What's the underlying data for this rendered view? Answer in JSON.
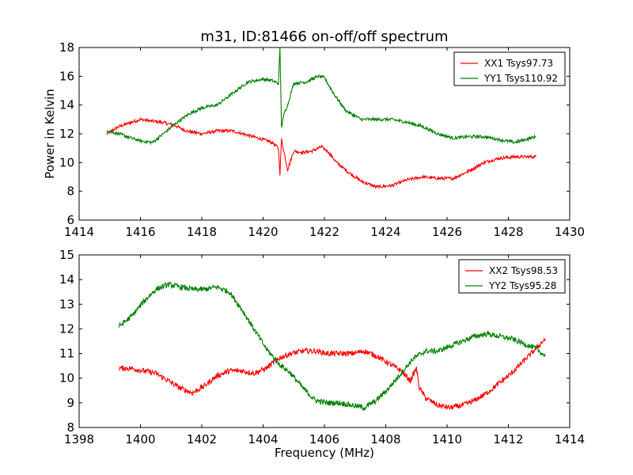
{
  "chart_data": [
    {
      "type": "line",
      "title": "m31, ID:81466 on-off/off spectrum",
      "xlabel": "",
      "ylabel": "Power in Kelvin",
      "xlim": [
        1414,
        1430
      ],
      "ylim": [
        6,
        18
      ],
      "xticks": [
        1414,
        1416,
        1418,
        1420,
        1422,
        1424,
        1426,
        1428,
        1430
      ],
      "yticks": [
        6,
        8,
        10,
        12,
        14,
        16,
        18
      ],
      "legend_position": "top-right",
      "series": [
        {
          "name": "XX1 Tsys97.73",
          "color": "#ff0000",
          "x": [
            1414.9,
            1415.3,
            1415.7,
            1416.0,
            1416.3,
            1416.7,
            1417.1,
            1417.5,
            1418.0,
            1418.5,
            1419.0,
            1419.5,
            1420.0,
            1420.3,
            1420.5,
            1420.55,
            1420.6,
            1420.8,
            1421.0,
            1421.3,
            1421.6,
            1421.9,
            1422.1,
            1422.4,
            1422.8,
            1423.2,
            1423.7,
            1424.2,
            1424.7,
            1425.2,
            1425.7,
            1426.2,
            1426.7,
            1427.2,
            1427.7,
            1428.2,
            1428.9
          ],
          "y": [
            12.0,
            12.5,
            12.8,
            13.0,
            12.9,
            12.8,
            12.6,
            12.2,
            12.0,
            12.2,
            12.2,
            11.9,
            11.6,
            11.4,
            11.0,
            9.2,
            11.6,
            9.5,
            10.8,
            10.7,
            10.8,
            11.1,
            10.8,
            10.0,
            9.3,
            8.7,
            8.3,
            8.4,
            8.8,
            9.0,
            8.9,
            8.9,
            9.4,
            10.0,
            10.3,
            10.4,
            10.4
          ]
        },
        {
          "name": "YY1 Tsys110.92",
          "color": "#008000",
          "x": [
            1414.9,
            1415.3,
            1415.7,
            1416.0,
            1416.4,
            1416.8,
            1417.2,
            1417.6,
            1418.0,
            1418.5,
            1419.0,
            1419.5,
            1420.0,
            1420.3,
            1420.5,
            1420.55,
            1420.6,
            1420.7,
            1420.8,
            1421.0,
            1421.4,
            1421.8,
            1422.0,
            1422.3,
            1422.7,
            1423.2,
            1423.7,
            1424.2,
            1424.7,
            1425.2,
            1425.7,
            1426.2,
            1426.7,
            1427.2,
            1427.7,
            1428.2,
            1428.9
          ],
          "y": [
            12.2,
            12.0,
            11.7,
            11.5,
            11.4,
            12.1,
            12.8,
            13.4,
            13.8,
            14.0,
            14.8,
            15.6,
            15.8,
            15.7,
            15.5,
            18.0,
            12.5,
            13.5,
            14.0,
            15.5,
            15.6,
            16.0,
            15.9,
            14.8,
            13.6,
            13.0,
            13.0,
            13.0,
            12.8,
            12.5,
            12.0,
            11.7,
            11.8,
            11.8,
            11.6,
            11.4,
            11.8
          ]
        }
      ]
    },
    {
      "type": "line",
      "title": "",
      "xlabel": "Frequency (MHz)",
      "ylabel": "",
      "xlim": [
        1398,
        1414
      ],
      "ylim": [
        8,
        15
      ],
      "xticks": [
        1398,
        1400,
        1402,
        1404,
        1406,
        1408,
        1410,
        1412,
        1414
      ],
      "yticks": [
        8,
        9,
        10,
        11,
        12,
        13,
        14,
        15
      ],
      "legend_position": "top-right",
      "series": [
        {
          "name": "XX2 Tsys98.53",
          "color": "#ff0000",
          "x": [
            1399.3,
            1399.7,
            1400.1,
            1400.5,
            1400.9,
            1401.3,
            1401.7,
            1402.1,
            1402.5,
            1402.9,
            1403.3,
            1403.7,
            1404.1,
            1404.5,
            1404.9,
            1405.3,
            1405.7,
            1406.1,
            1406.5,
            1406.9,
            1407.3,
            1407.7,
            1408.1,
            1408.5,
            1408.8,
            1409.0,
            1409.1,
            1409.3,
            1409.7,
            1410.1,
            1410.5,
            1410.9,
            1411.3,
            1411.7,
            1412.1,
            1412.5,
            1412.9,
            1413.2
          ],
          "y": [
            10.4,
            10.4,
            10.3,
            10.2,
            9.9,
            9.6,
            9.4,
            9.7,
            10.1,
            10.3,
            10.3,
            10.2,
            10.4,
            10.8,
            11.0,
            11.1,
            11.1,
            11.0,
            11.0,
            11.0,
            11.1,
            10.9,
            10.6,
            10.3,
            9.9,
            10.4,
            9.6,
            9.2,
            8.9,
            8.8,
            8.9,
            9.1,
            9.4,
            9.8,
            10.2,
            10.7,
            11.2,
            11.6
          ]
        },
        {
          "name": "YY2 Tsys95.28",
          "color": "#008000",
          "x": [
            1399.3,
            1399.7,
            1400.1,
            1400.5,
            1400.9,
            1401.3,
            1401.7,
            1402.1,
            1402.5,
            1402.9,
            1403.3,
            1403.7,
            1404.1,
            1404.5,
            1404.9,
            1405.3,
            1405.7,
            1406.1,
            1406.5,
            1406.9,
            1407.3,
            1407.7,
            1408.1,
            1408.5,
            1408.9,
            1409.3,
            1409.7,
            1410.1,
            1410.5,
            1410.9,
            1411.3,
            1411.7,
            1412.1,
            1412.5,
            1412.9,
            1413.2
          ],
          "y": [
            12.1,
            12.5,
            13.1,
            13.6,
            13.8,
            13.7,
            13.6,
            13.6,
            13.7,
            13.5,
            12.8,
            12.0,
            11.2,
            10.6,
            10.2,
            9.6,
            9.1,
            9.0,
            9.0,
            8.9,
            8.8,
            9.1,
            9.6,
            10.2,
            10.8,
            11.1,
            11.1,
            11.3,
            11.5,
            11.7,
            11.8,
            11.7,
            11.6,
            11.4,
            11.2,
            10.9
          ]
        }
      ]
    }
  ]
}
